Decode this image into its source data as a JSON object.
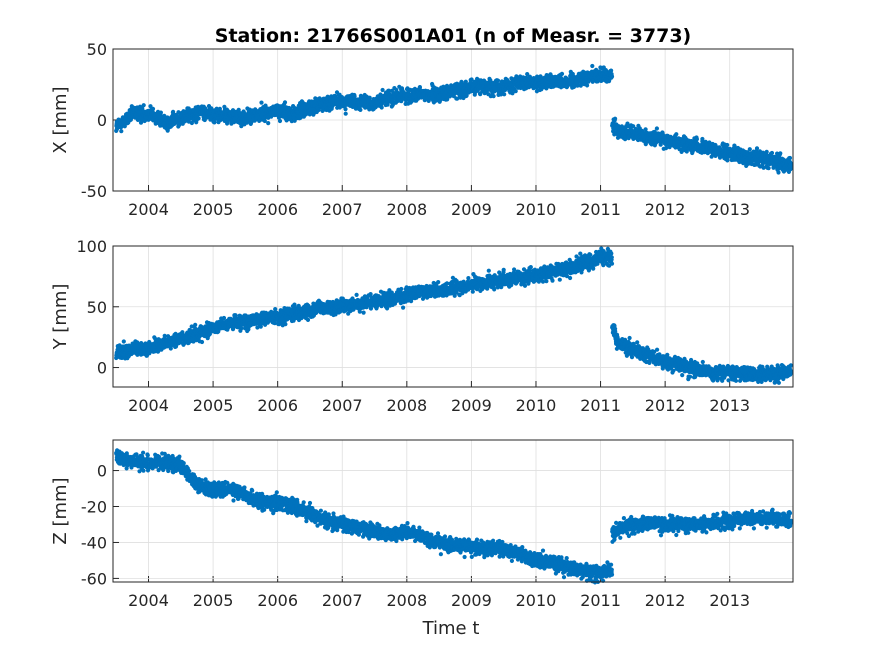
{
  "chart_data": [
    {
      "type": "scatter",
      "title": "Station: 21766S001A01 (n of Measr. = 3773)",
      "ylabel": "X [mm]",
      "xlabel": "",
      "x_ticks": [
        "2004",
        "2005",
        "2006",
        "2007",
        "2008",
        "2009",
        "2010",
        "2011",
        "2012",
        "2013"
      ],
      "y_ticks": [
        "-50",
        "0",
        "50"
      ],
      "xlim": [
        2003.45,
        2013.98
      ],
      "ylim": [
        -50,
        50
      ],
      "grid": true,
      "color": "#0072BD",
      "series": [
        {
          "x": [
            2003.5,
            2003.75,
            2004.0,
            2004.25,
            2004.5,
            2004.75,
            2005.0,
            2005.25,
            2005.5,
            2005.75,
            2006.0,
            2006.25,
            2006.5,
            2006.75,
            2007.0,
            2007.25,
            2007.5,
            2007.75,
            2008.0,
            2008.25,
            2008.5,
            2008.75,
            2009.0,
            2009.25,
            2009.5,
            2009.75,
            2010.0,
            2010.25,
            2010.5,
            2010.75,
            2011.0,
            2011.1,
            2011.18,
            2011.3,
            2011.5,
            2011.75,
            2012.0,
            2012.25,
            2012.5,
            2012.75,
            2013.0,
            2013.25,
            2013.5,
            2013.75,
            2013.95
          ],
          "y": [
            -5,
            4,
            5,
            -2,
            1,
            6,
            4,
            3,
            1,
            5,
            6,
            5,
            9,
            12,
            13,
            12,
            12,
            16,
            17,
            18,
            18,
            21,
            23,
            24,
            24,
            26,
            25,
            28,
            27,
            30,
            32,
            31,
            -3,
            -8,
            -10,
            -12,
            -14,
            -16,
            -18,
            -21,
            -23,
            -26,
            -27,
            -30,
            -32
          ]
        }
      ]
    },
    {
      "type": "scatter",
      "ylabel": "Y [mm]",
      "xlabel": "",
      "x_ticks": [
        "2004",
        "2005",
        "2006",
        "2007",
        "2008",
        "2009",
        "2010",
        "2011",
        "2012",
        "2013"
      ],
      "y_ticks": [
        "0",
        "50",
        "100"
      ],
      "xlim": [
        2003.45,
        2013.98
      ],
      "ylim": [
        -16,
        100
      ],
      "grid": true,
      "color": "#0072BD",
      "series": [
        {
          "x": [
            2003.5,
            2003.75,
            2004.0,
            2004.25,
            2004.5,
            2004.75,
            2005.0,
            2005.25,
            2005.5,
            2005.75,
            2006.0,
            2006.25,
            2006.5,
            2006.75,
            2007.0,
            2007.25,
            2007.5,
            2007.75,
            2008.0,
            2008.25,
            2008.5,
            2008.75,
            2009.0,
            2009.25,
            2009.5,
            2009.75,
            2010.0,
            2010.25,
            2010.5,
            2010.75,
            2011.0,
            2011.1,
            2011.18,
            2011.3,
            2011.5,
            2011.75,
            2012.0,
            2012.25,
            2012.5,
            2012.75,
            2013.0,
            2013.25,
            2013.5,
            2013.75,
            2013.95
          ],
          "y": [
            12,
            14,
            16,
            20,
            24,
            28,
            33,
            37,
            38,
            40,
            42,
            44,
            47,
            49,
            50,
            52,
            54,
            57,
            60,
            62,
            64,
            66,
            68,
            70,
            72,
            74,
            76,
            79,
            82,
            86,
            90,
            91,
            32,
            20,
            14,
            10,
            5,
            2,
            -2,
            -4,
            -5,
            -5,
            -6,
            -5,
            -4
          ]
        }
      ]
    },
    {
      "type": "scatter",
      "ylabel": "Z [mm]",
      "xlabel": "Time t",
      "x_ticks": [
        "2004",
        "2005",
        "2006",
        "2007",
        "2008",
        "2009",
        "2010",
        "2011",
        "2012",
        "2013"
      ],
      "y_ticks": [
        "-60",
        "-40",
        "-20",
        "0"
      ],
      "xlim": [
        2003.45,
        2013.98
      ],
      "ylim": [
        -62,
        17
      ],
      "grid": true,
      "color": "#0072BD",
      "series": [
        {
          "x": [
            2003.5,
            2003.75,
            2004.0,
            2004.25,
            2004.5,
            2004.75,
            2005.0,
            2005.25,
            2005.5,
            2005.75,
            2006.0,
            2006.25,
            2006.5,
            2006.75,
            2007.0,
            2007.25,
            2007.5,
            2007.75,
            2008.0,
            2008.25,
            2008.5,
            2008.75,
            2009.0,
            2009.25,
            2009.5,
            2009.75,
            2010.0,
            2010.25,
            2010.5,
            2010.75,
            2011.0,
            2011.1,
            2011.18,
            2011.3,
            2011.5,
            2011.75,
            2012.0,
            2012.25,
            2012.5,
            2012.75,
            2013.0,
            2013.25,
            2013.5,
            2013.75,
            2013.95
          ],
          "y": [
            8,
            5,
            4,
            5,
            3,
            -8,
            -11,
            -10,
            -14,
            -18,
            -18,
            -20,
            -24,
            -28,
            -30,
            -32,
            -34,
            -36,
            -34,
            -36,
            -40,
            -42,
            -42,
            -43,
            -44,
            -46,
            -50,
            -51,
            -54,
            -56,
            -57,
            -56,
            -36,
            -32,
            -30,
            -29,
            -30,
            -30,
            -30,
            -29,
            -28,
            -27,
            -27,
            -27,
            -28
          ]
        }
      ]
    }
  ]
}
